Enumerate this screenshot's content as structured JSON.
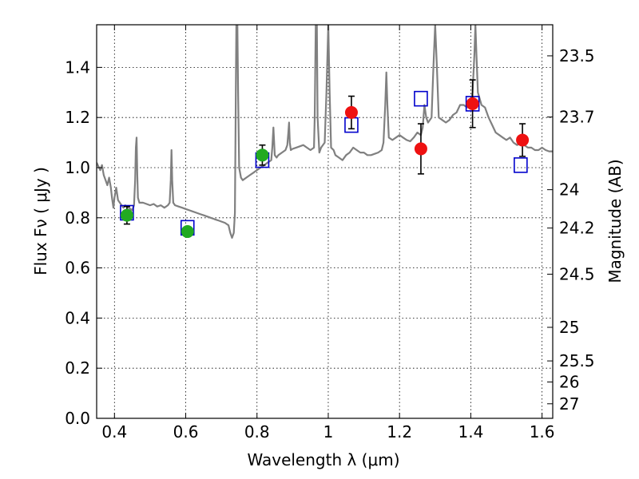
{
  "chart_data": {
    "type": "scatter",
    "title": "",
    "xlabel": "Wavelength  λ (μm)",
    "ylabel": "Flux  Fν  ( μJy )",
    "y2label": "Magnitude (AB)",
    "xlim": [
      0.35,
      1.63
    ],
    "ylim": [
      0.0,
      1.57
    ],
    "x_ticks": [
      0.4,
      0.6,
      0.8,
      1.0,
      1.2,
      1.4,
      1.6
    ],
    "x_tick_labels": [
      "0.4",
      "0.6",
      "0.8",
      "1",
      "1.2",
      "1.4",
      "1.6"
    ],
    "y_ticks": [
      0.0,
      0.2,
      0.4,
      0.6,
      0.8,
      1.0,
      1.2,
      1.4
    ],
    "y_tick_labels": [
      "0.0",
      "0.2",
      "0.4",
      "0.6",
      "0.8",
      "1.0",
      "1.2",
      "1.4"
    ],
    "y2_ticks": [
      {
        "label": "23.5",
        "flux": 1.446
      },
      {
        "label": "23.7",
        "flux": 1.202
      },
      {
        "label": "24",
        "flux": 0.912
      },
      {
        "label": "24.2",
        "flux": 0.759
      },
      {
        "label": "24.5",
        "flux": 0.575
      },
      {
        "label": "25",
        "flux": 0.363
      },
      {
        "label": "25.5",
        "flux": 0.229
      },
      {
        "label": "26",
        "flux": 0.145
      },
      {
        "label": "27",
        "flux": 0.058
      }
    ],
    "grid": true,
    "series": [
      {
        "kind": "line",
        "color": "#808080",
        "points": [
          [
            0.35,
            1.02
          ],
          [
            0.36,
            0.99
          ],
          [
            0.365,
            1.01
          ],
          [
            0.37,
            0.97
          ],
          [
            0.375,
            0.95
          ],
          [
            0.38,
            0.93
          ],
          [
            0.385,
            0.96
          ],
          [
            0.39,
            0.92
          ],
          [
            0.393,
            0.88
          ],
          [
            0.397,
            0.84
          ],
          [
            0.4,
            0.88
          ],
          [
            0.405,
            0.92
          ],
          [
            0.41,
            0.87
          ],
          [
            0.415,
            0.86
          ],
          [
            0.42,
            0.85
          ],
          [
            0.425,
            0.84
          ],
          [
            0.43,
            0.85
          ],
          [
            0.44,
            0.84
          ],
          [
            0.45,
            0.83
          ],
          [
            0.455,
            0.85
          ],
          [
            0.458,
            0.95
          ],
          [
            0.46,
            1.08
          ],
          [
            0.462,
            1.12
          ],
          [
            0.464,
            0.97
          ],
          [
            0.466,
            0.88
          ],
          [
            0.47,
            0.86
          ],
          [
            0.48,
            0.86
          ],
          [
            0.49,
            0.855
          ],
          [
            0.5,
            0.85
          ],
          [
            0.51,
            0.855
          ],
          [
            0.52,
            0.845
          ],
          [
            0.53,
            0.85
          ],
          [
            0.54,
            0.84
          ],
          [
            0.55,
            0.85
          ],
          [
            0.555,
            0.86
          ],
          [
            0.558,
            0.95
          ],
          [
            0.56,
            1.07
          ],
          [
            0.562,
            0.95
          ],
          [
            0.565,
            0.86
          ],
          [
            0.57,
            0.85
          ],
          [
            0.58,
            0.845
          ],
          [
            0.59,
            0.84
          ],
          [
            0.6,
            0.835
          ],
          [
            0.61,
            0.83
          ],
          [
            0.62,
            0.825
          ],
          [
            0.63,
            0.82
          ],
          [
            0.64,
            0.815
          ],
          [
            0.65,
            0.81
          ],
          [
            0.66,
            0.805
          ],
          [
            0.67,
            0.8
          ],
          [
            0.68,
            0.795
          ],
          [
            0.69,
            0.79
          ],
          [
            0.7,
            0.785
          ],
          [
            0.71,
            0.78
          ],
          [
            0.715,
            0.775
          ],
          [
            0.72,
            0.77
          ],
          [
            0.725,
            0.74
          ],
          [
            0.73,
            0.72
          ],
          [
            0.735,
            0.74
          ],
          [
            0.738,
            0.82
          ],
          [
            0.74,
            1.2
          ],
          [
            0.742,
            1.57
          ],
          [
            0.745,
            1.57
          ],
          [
            0.747,
            1.3
          ],
          [
            0.75,
            1.0
          ],
          [
            0.755,
            0.96
          ],
          [
            0.76,
            0.95
          ],
          [
            0.77,
            0.96
          ],
          [
            0.78,
            0.97
          ],
          [
            0.79,
            0.98
          ],
          [
            0.8,
            0.99
          ],
          [
            0.81,
            1.0
          ],
          [
            0.82,
            1.01
          ],
          [
            0.83,
            1.02
          ],
          [
            0.84,
            1.03
          ],
          [
            0.843,
            1.08
          ],
          [
            0.846,
            1.16
          ],
          [
            0.85,
            1.05
          ],
          [
            0.855,
            1.04
          ],
          [
            0.86,
            1.05
          ],
          [
            0.87,
            1.06
          ],
          [
            0.88,
            1.07
          ],
          [
            0.885,
            1.09
          ],
          [
            0.888,
            1.14
          ],
          [
            0.89,
            1.18
          ],
          [
            0.892,
            1.1
          ],
          [
            0.895,
            1.07
          ],
          [
            0.9,
            1.075
          ],
          [
            0.91,
            1.08
          ],
          [
            0.92,
            1.085
          ],
          [
            0.93,
            1.09
          ],
          [
            0.94,
            1.08
          ],
          [
            0.95,
            1.07
          ],
          [
            0.96,
            1.08
          ],
          [
            0.962,
            1.2
          ],
          [
            0.965,
            1.57
          ],
          [
            0.968,
            1.57
          ],
          [
            0.97,
            1.2
          ],
          [
            0.975,
            1.06
          ],
          [
            0.98,
            1.08
          ],
          [
            0.99,
            1.1
          ],
          [
            0.995,
            1.3
          ],
          [
            1.0,
            1.57
          ],
          [
            1.004,
            1.3
          ],
          [
            1.008,
            1.08
          ],
          [
            1.015,
            1.07
          ],
          [
            1.02,
            1.05
          ],
          [
            1.03,
            1.04
          ],
          [
            1.04,
            1.03
          ],
          [
            1.05,
            1.05
          ],
          [
            1.06,
            1.06
          ],
          [
            1.07,
            1.08
          ],
          [
            1.08,
            1.07
          ],
          [
            1.09,
            1.06
          ],
          [
            1.1,
            1.06
          ],
          [
            1.11,
            1.05
          ],
          [
            1.12,
            1.05
          ],
          [
            1.13,
            1.055
          ],
          [
            1.14,
            1.06
          ],
          [
            1.15,
            1.07
          ],
          [
            1.155,
            1.1
          ],
          [
            1.16,
            1.25
          ],
          [
            1.163,
            1.38
          ],
          [
            1.166,
            1.25
          ],
          [
            1.17,
            1.12
          ],
          [
            1.18,
            1.11
          ],
          [
            1.19,
            1.12
          ],
          [
            1.2,
            1.13
          ],
          [
            1.21,
            1.12
          ],
          [
            1.22,
            1.11
          ],
          [
            1.23,
            1.105
          ],
          [
            1.24,
            1.12
          ],
          [
            1.25,
            1.14
          ],
          [
            1.26,
            1.13
          ],
          [
            1.265,
            1.16
          ],
          [
            1.27,
            1.25
          ],
          [
            1.275,
            1.2
          ],
          [
            1.28,
            1.18
          ],
          [
            1.29,
            1.2
          ],
          [
            1.295,
            1.4
          ],
          [
            1.3,
            1.57
          ],
          [
            1.305,
            1.4
          ],
          [
            1.31,
            1.2
          ],
          [
            1.32,
            1.19
          ],
          [
            1.33,
            1.18
          ],
          [
            1.34,
            1.19
          ],
          [
            1.35,
            1.21
          ],
          [
            1.36,
            1.22
          ],
          [
            1.37,
            1.25
          ],
          [
            1.38,
            1.25
          ],
          [
            1.39,
            1.24
          ],
          [
            1.4,
            1.26
          ],
          [
            1.405,
            1.3
          ],
          [
            1.41,
            1.45
          ],
          [
            1.413,
            1.57
          ],
          [
            1.416,
            1.45
          ],
          [
            1.42,
            1.3
          ],
          [
            1.43,
            1.25
          ],
          [
            1.44,
            1.24
          ],
          [
            1.45,
            1.2
          ],
          [
            1.46,
            1.17
          ],
          [
            1.47,
            1.14
          ],
          [
            1.48,
            1.13
          ],
          [
            1.49,
            1.12
          ],
          [
            1.5,
            1.11
          ],
          [
            1.51,
            1.12
          ],
          [
            1.52,
            1.1
          ],
          [
            1.53,
            1.09
          ],
          [
            1.54,
            1.1
          ],
          [
            1.55,
            1.09
          ],
          [
            1.56,
            1.08
          ],
          [
            1.57,
            1.08
          ],
          [
            1.58,
            1.07
          ],
          [
            1.59,
            1.07
          ],
          [
            1.6,
            1.08
          ],
          [
            1.61,
            1.07
          ],
          [
            1.62,
            1.065
          ],
          [
            1.63,
            1.065
          ]
        ]
      },
      {
        "kind": "squares",
        "color": "#0000cc",
        "points": [
          [
            0.435,
            0.82
          ],
          [
            0.605,
            0.76
          ],
          [
            0.815,
            1.03
          ],
          [
            1.065,
            1.17
          ],
          [
            1.26,
            1.275
          ],
          [
            1.405,
            1.255
          ],
          [
            1.54,
            1.01
          ]
        ]
      },
      {
        "kind": "points",
        "color": "#22aa22",
        "points": [
          [
            0.435,
            0.81
          ],
          [
            0.605,
            0.745
          ],
          [
            0.815,
            1.05
          ]
        ],
        "errors": [
          0.035,
          0.015,
          0.04
        ]
      },
      {
        "kind": "points",
        "color": "#ee1111",
        "points": [
          [
            1.065,
            1.22
          ],
          [
            1.26,
            1.075
          ],
          [
            1.405,
            1.255
          ],
          [
            1.545,
            1.11
          ]
        ],
        "errors": [
          0.065,
          0.1,
          0.095,
          0.065
        ]
      }
    ]
  }
}
